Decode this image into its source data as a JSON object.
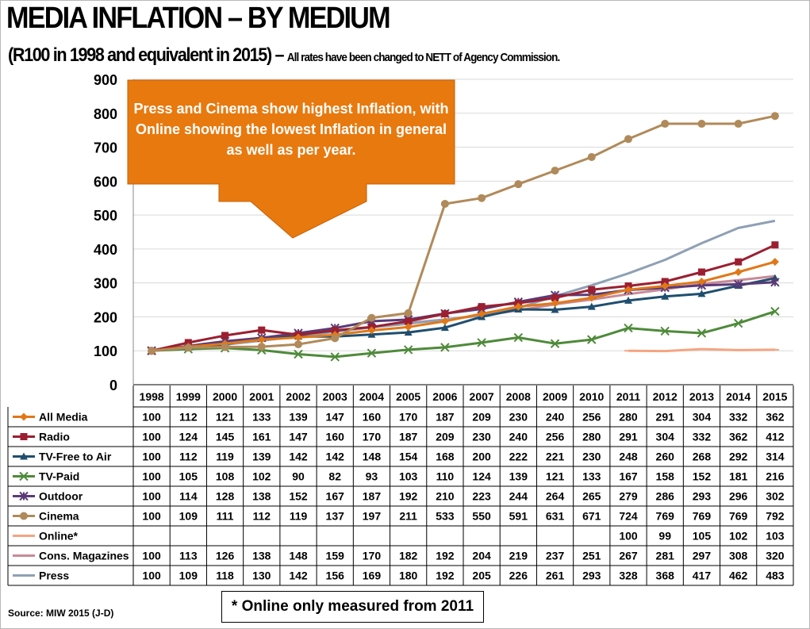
{
  "header": {
    "title": "MEDIA INFLATION – BY MEDIUM",
    "subtitle": "(R100 in 1998 and equivalent in 2015)",
    "subtitle_dash": " – ",
    "subtitle_note": "All rates have been changed to NETT of Agency Commission."
  },
  "callout": {
    "text": "Press and Cinema show highest Inflation, with Online showing the lowest Inflation in general as well as per year.",
    "color": "#E8790E"
  },
  "footnote": "* Online only measured from 2011",
  "source": "Source:  MIW 2015 (J-D)",
  "chart_data": {
    "type": "line",
    "title": "MEDIA INFLATION – BY MEDIUM",
    "ylim": [
      0,
      900
    ],
    "yticks": [
      "0",
      "100",
      "200",
      "300",
      "400",
      "500",
      "600",
      "700",
      "800",
      "900"
    ],
    "grid": true,
    "categories": [
      "1998",
      "1999",
      "2000",
      "2001",
      "2002",
      "2003",
      "2004",
      "2005",
      "2006",
      "2007",
      "2008",
      "2009",
      "2010",
      "2011",
      "2012",
      "2013",
      "2014",
      "2015"
    ],
    "series": [
      {
        "name": "All Media",
        "color": "#E07818",
        "marker": "diamond",
        "values": [
          100,
          112,
          121,
          133,
          139,
          147,
          160,
          170,
          187,
          209,
          230,
          240,
          256,
          280,
          291,
          304,
          332,
          362
        ]
      },
      {
        "name": "Radio",
        "color": "#9B1F30",
        "marker": "square",
        "values": [
          100,
          124,
          145,
          161,
          147,
          160,
          170,
          187,
          209,
          230,
          240,
          256,
          280,
          291,
          304,
          332,
          362,
          412
        ]
      },
      {
        "name": "TV-Free to Air",
        "color": "#1F4E6E",
        "marker": "triangle",
        "values": [
          100,
          112,
          119,
          139,
          142,
          142,
          148,
          154,
          168,
          200,
          222,
          221,
          230,
          248,
          260,
          268,
          292,
          314
        ]
      },
      {
        "name": "TV-Paid",
        "color": "#4E8A3A",
        "marker": "x",
        "values": [
          100,
          105,
          108,
          102,
          90,
          82,
          93,
          103,
          110,
          124,
          139,
          121,
          133,
          167,
          158,
          152,
          181,
          216
        ]
      },
      {
        "name": "Outdoor",
        "color": "#5A3A78",
        "marker": "star",
        "values": [
          100,
          114,
          128,
          138,
          152,
          167,
          187,
          192,
          210,
          223,
          244,
          264,
          265,
          279,
          286,
          293,
          296,
          302
        ]
      },
      {
        "name": "Cinema",
        "color": "#B08A5A",
        "marker": "circle",
        "values": [
          100,
          109,
          111,
          112,
          119,
          137,
          197,
          211,
          533,
          550,
          591,
          631,
          671,
          724,
          769,
          769,
          769,
          792
        ]
      },
      {
        "name": "Online*",
        "color": "#F4A582",
        "marker": "dash",
        "values": [
          null,
          null,
          null,
          null,
          null,
          null,
          null,
          null,
          null,
          null,
          null,
          null,
          null,
          100,
          99,
          105,
          102,
          103
        ]
      },
      {
        "name": "Cons. Magazines",
        "color": "#C88A96",
        "marker": "none",
        "values": [
          100,
          113,
          126,
          138,
          148,
          159,
          170,
          182,
          192,
          204,
          219,
          237,
          251,
          267,
          281,
          297,
          308,
          320
        ]
      },
      {
        "name": "Press",
        "color": "#8FA0B4",
        "marker": "none",
        "values": [
          100,
          109,
          118,
          130,
          142,
          156,
          169,
          180,
          192,
          205,
          226,
          261,
          293,
          328,
          368,
          417,
          462,
          483
        ]
      }
    ]
  }
}
